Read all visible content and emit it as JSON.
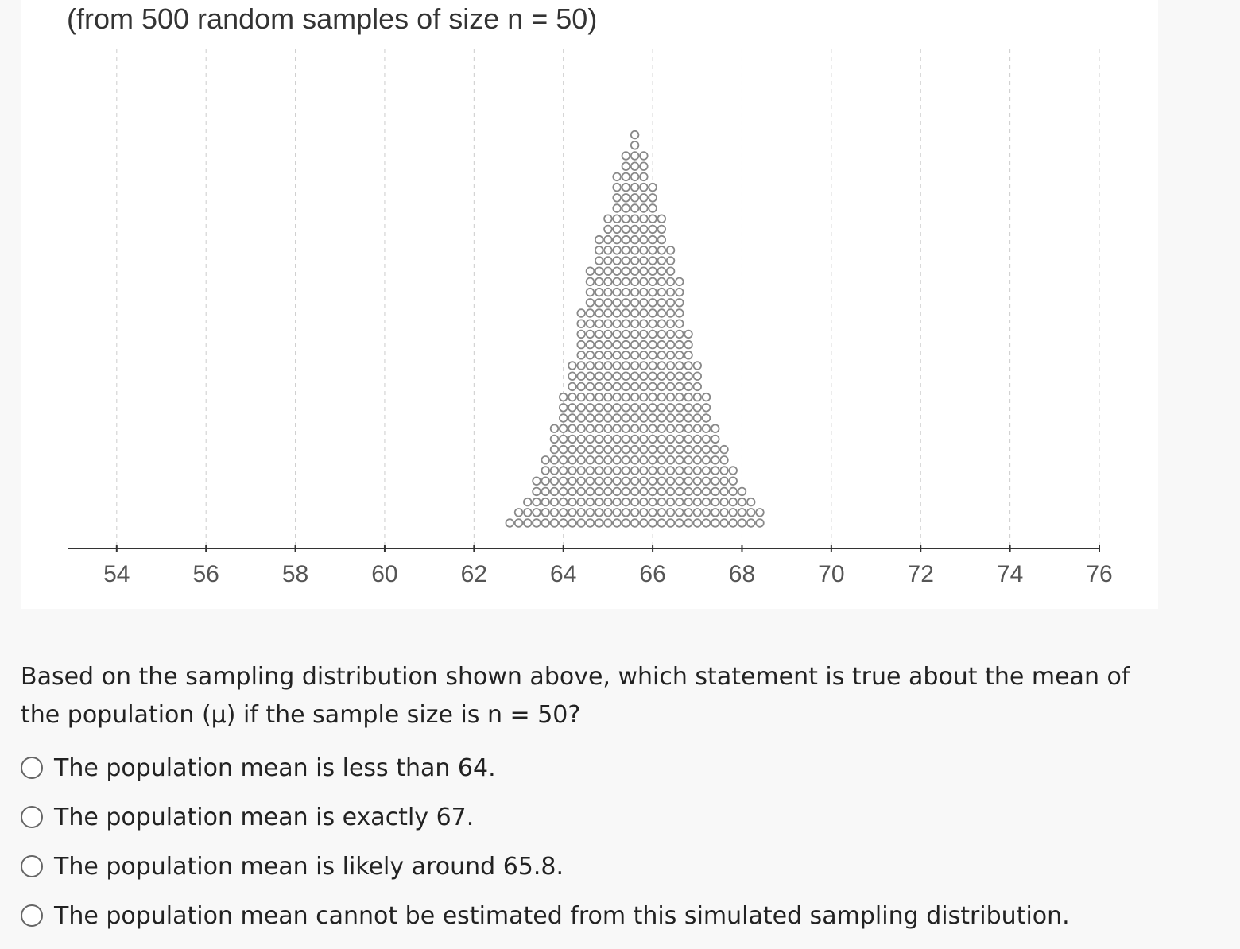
{
  "chart_data": {
    "type": "dot",
    "title": "(from 500 random samples of size n = 50)",
    "x": [
      62.8,
      63.0,
      63.2,
      63.4,
      63.6,
      63.8,
      64.0,
      64.2,
      64.4,
      64.6,
      64.8,
      65.0,
      65.2,
      65.4,
      65.6,
      65.8,
      66.0,
      66.2,
      66.4,
      66.6,
      66.8,
      67.0,
      67.2,
      67.4,
      67.6,
      67.8,
      68.0,
      68.2,
      68.4
    ],
    "values": [
      1,
      2,
      3,
      5,
      7,
      10,
      13,
      16,
      21,
      25,
      28,
      30,
      34,
      36,
      38,
      36,
      33,
      30,
      27,
      24,
      19,
      16,
      13,
      10,
      8,
      6,
      4,
      3,
      2
    ],
    "color": "#888888",
    "xlim": [
      52.9,
      76
    ],
    "xticks": [
      54,
      56,
      58,
      60,
      62,
      64,
      66,
      68,
      70,
      72,
      74,
      76
    ],
    "grid": true
  },
  "question": {
    "text": "Based on the sampling distribution shown above, which statement is true about the mean of the population (μ) if the sample size is n = 50?",
    "options": [
      "The population mean is less than 64.",
      "The population mean is exactly 67.",
      "The population mean is likely around 65.8.",
      "The population mean cannot be estimated from this simulated sampling distribution."
    ]
  }
}
